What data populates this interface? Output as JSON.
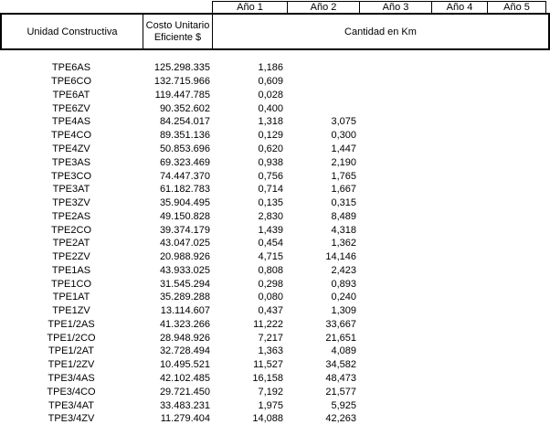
{
  "table": {
    "year_headers": [
      "Año 1",
      "Año 2",
      "Año 3",
      "Año 4",
      "Año 5"
    ],
    "col_headers": {
      "unidad": "Unidad Constructiva",
      "costo_line1": "Costo Unitario",
      "costo_line2": "Eficiente $",
      "cantidad": "Cantidad en Km"
    },
    "rows": [
      [
        "TPE6AS",
        "125.298.335",
        "1,186",
        "",
        "",
        "",
        ""
      ],
      [
        "TPE6CO",
        "132.715.966",
        "0,609",
        "",
        "",
        "",
        ""
      ],
      [
        "TPE6AT",
        "119.447.785",
        "0,028",
        "",
        "",
        "",
        ""
      ],
      [
        "TPE6ZV",
        "90.352.602",
        "0,400",
        "",
        "",
        "",
        ""
      ],
      [
        "TPE4AS",
        "84.254.017",
        "1,318",
        "3,075",
        "",
        "",
        ""
      ],
      [
        "TPE4CO",
        "89.351.136",
        "0,129",
        "0,300",
        "",
        "",
        ""
      ],
      [
        "TPE4ZV",
        "50.853.696",
        "0,620",
        "1,447",
        "",
        "",
        ""
      ],
      [
        "TPE3AS",
        "69.323.469",
        "0,938",
        "2,190",
        "",
        "",
        ""
      ],
      [
        "TPE3CO",
        "74.447.370",
        "0,756",
        "1,765",
        "",
        "",
        ""
      ],
      [
        "TPE3AT",
        "61.182.783",
        "0,714",
        "1,667",
        "",
        "",
        ""
      ],
      [
        "TPE3ZV",
        "35.904.495",
        "0,135",
        "0,315",
        "",
        "",
        ""
      ],
      [
        "TPE2AS",
        "49.150.828",
        "2,830",
        "8,489",
        "",
        "",
        ""
      ],
      [
        "TPE2CO",
        "39.374.179",
        "1,439",
        "4,318",
        "",
        "",
        ""
      ],
      [
        "TPE2AT",
        "43.047.025",
        "0,454",
        "1,362",
        "",
        "",
        ""
      ],
      [
        "TPE2ZV",
        "20.988.926",
        "4,715",
        "14,146",
        "",
        "",
        ""
      ],
      [
        "TPE1AS",
        "43.933.025",
        "0,808",
        "2,423",
        "",
        "",
        ""
      ],
      [
        "TPE1CO",
        "31.545.294",
        "0,298",
        "0,893",
        "",
        "",
        ""
      ],
      [
        "TPE1AT",
        "35.289.288",
        "0,080",
        "0,240",
        "",
        "",
        ""
      ],
      [
        "TPE1ZV",
        "13.114.607",
        "0,437",
        "1,309",
        "",
        "",
        ""
      ],
      [
        "TPE1/2AS",
        "41.323.266",
        "11,222",
        "33,667",
        "",
        "",
        ""
      ],
      [
        "TPE1/2CO",
        "28.948.926",
        "7,217",
        "21,651",
        "",
        "",
        ""
      ],
      [
        "TPE1/2AT",
        "32.728.494",
        "1,363",
        "4,089",
        "",
        "",
        ""
      ],
      [
        "TPE1/2ZV",
        "10.495.521",
        "11,527",
        "34,582",
        "",
        "",
        ""
      ],
      [
        "TPE3/4AS",
        "42.102.485",
        "16,158",
        "48,473",
        "",
        "",
        ""
      ],
      [
        "TPE3/4CO",
        "29.721.450",
        "7,192",
        "21,577",
        "",
        "",
        ""
      ],
      [
        "TPE3/4AT",
        "33.483.231",
        "1,975",
        "5,925",
        "",
        "",
        ""
      ],
      [
        "TPE3/4ZV",
        "11.279.404",
        "14,088",
        "42,263",
        "",
        "",
        ""
      ]
    ]
  },
  "colors": {
    "border": "#000000",
    "text": "#000000",
    "background": "#ffffff"
  }
}
